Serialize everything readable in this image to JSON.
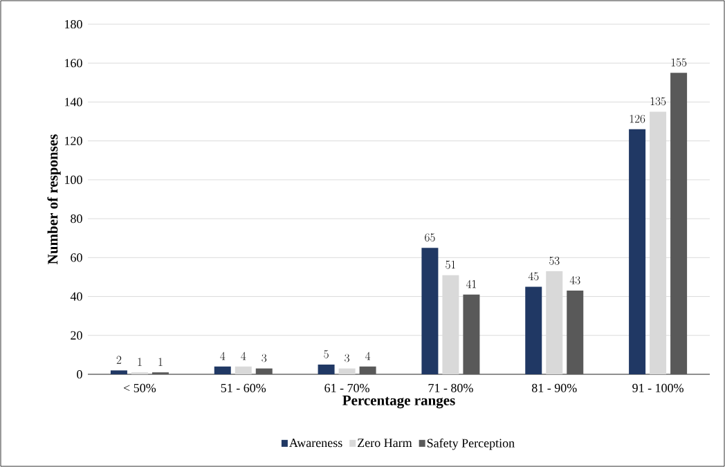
{
  "chart_data": {
    "type": "bar",
    "xlabel": "Percentage ranges",
    "ylabel": "Number of responses",
    "categories": [
      "< 50%",
      "51 - 60%",
      "61 - 70%",
      "71 - 80%",
      "81 - 90%",
      "91 - 100%"
    ],
    "series": [
      {
        "name": "Awareness",
        "color": "#203864",
        "values": [
          2,
          4,
          5,
          65,
          45,
          126
        ]
      },
      {
        "name": "Zero Harm",
        "color": "#d9d9d9",
        "values": [
          1,
          4,
          3,
          51,
          53,
          135
        ]
      },
      {
        "name": "Safety Perception",
        "color": "#595959",
        "values": [
          1,
          3,
          4,
          41,
          43,
          155
        ]
      }
    ],
    "ylim": [
      0,
      180
    ],
    "yticks": [
      0,
      20,
      40,
      60,
      80,
      100,
      120,
      140,
      160,
      180
    ],
    "grid": "y",
    "legend": "bottom",
    "data_labels": true
  }
}
